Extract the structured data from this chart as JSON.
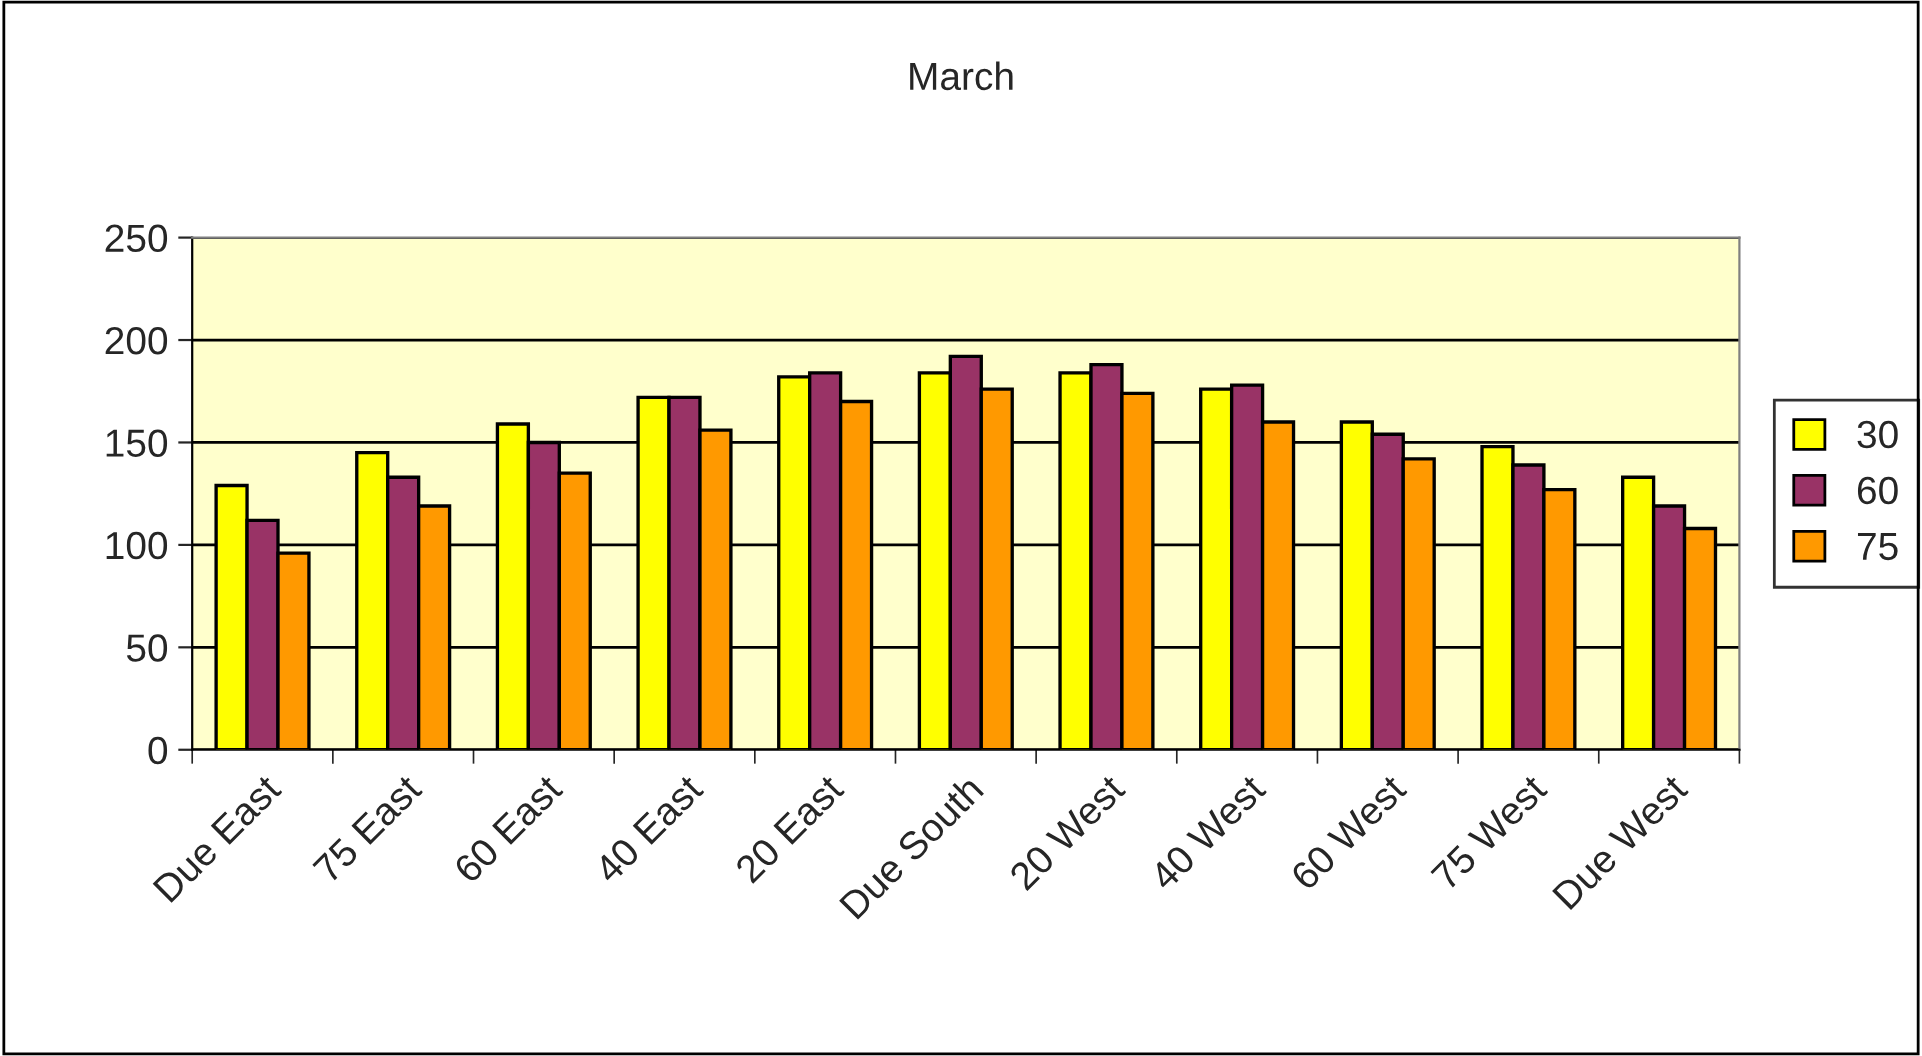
{
  "chart_data": {
    "type": "bar",
    "title": "March",
    "categories": [
      "Due East",
      "75 East",
      "60 East",
      "40 East",
      "20 East",
      "Due South",
      "20 West",
      "40 West",
      "60 West",
      "75 West",
      "Due West"
    ],
    "series": [
      {
        "name": "30",
        "color": "#ffff00",
        "values": [
          129,
          145,
          159,
          172,
          182,
          184,
          184,
          176,
          160,
          148,
          133
        ]
      },
      {
        "name": "60",
        "color": "#993366",
        "values": [
          112,
          133,
          150,
          172,
          184,
          192,
          188,
          178,
          154,
          139,
          119
        ]
      },
      {
        "name": "75",
        "color": "#ff9900",
        "values": [
          96,
          119,
          135,
          156,
          170,
          176,
          174,
          160,
          142,
          127,
          108
        ]
      }
    ],
    "ylim": [
      0,
      250
    ],
    "yticks": [
      0,
      50,
      100,
      150,
      200,
      250
    ],
    "grid": "y",
    "legend": "right"
  }
}
